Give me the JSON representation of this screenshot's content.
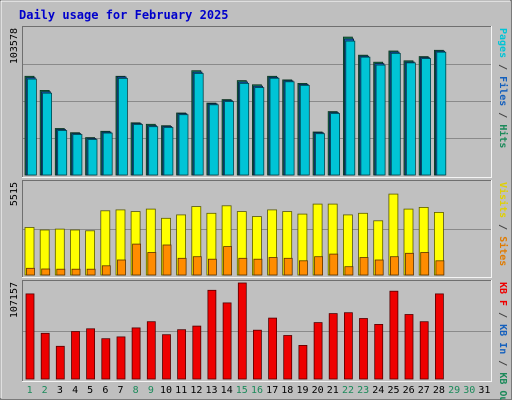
{
  "chart_data": {
    "type": "bar",
    "title": "Daily usage for February 2025",
    "categories": [
      "1",
      "2",
      "3",
      "4",
      "5",
      "6",
      "7",
      "8",
      "9",
      "10",
      "11",
      "12",
      "13",
      "14",
      "15",
      "16",
      "17",
      "18",
      "19",
      "20",
      "21",
      "22",
      "23",
      "24",
      "25",
      "26",
      "27",
      "28",
      "29",
      "30",
      "31"
    ],
    "weekend_days": [
      "1",
      "2",
      "8",
      "9",
      "15",
      "16",
      "22",
      "23",
      "29",
      "30"
    ],
    "panels": [
      {
        "id": "hits",
        "max_label": "103578",
        "ylim": [
          0,
          103578
        ],
        "side_labels": [
          {
            "text": "Pages",
            "color": "#00c4d6"
          },
          {
            "text": " / ",
            "color": "#444444"
          },
          {
            "text": "Files",
            "color": "#1560bd"
          },
          {
            "text": " / ",
            "color": "#444444"
          },
          {
            "text": "Hits",
            "color": "#1b8a5a"
          }
        ],
        "series": [
          {
            "name": "Hits",
            "color": "#1b8a5a",
            "values": [
              70000,
              60000,
              33000,
              30000,
              26500,
              31000,
              70000,
              37000,
              36000,
              35000,
              44000,
              74000,
              51000,
              53500,
              67000,
              64000,
              70000,
              67500,
              65000,
              30500,
              45000,
              97800,
              85000,
              80000,
              88000,
              81000,
              84000,
              88500,
              null,
              null,
              null
            ]
          },
          {
            "name": "Files",
            "color": "#1560bd",
            "values": [
              69000,
              59000,
              32300,
              29400,
              25900,
              30400,
              69500,
              36500,
              35000,
              34400,
              43500,
              73000,
              50500,
              52800,
              66000,
              63000,
              69300,
              66800,
              64300,
              30000,
              44300,
              96500,
              84300,
              79000,
              87200,
              80200,
              83300,
              87800,
              null,
              null,
              null
            ]
          },
          {
            "name": "Pages",
            "color": "#00c4d6",
            "values": [
              68000,
              58000,
              31600,
              28700,
              25200,
              29700,
              68500,
              35800,
              34300,
              33700,
              42800,
              72000,
              49800,
              52100,
              65000,
              62000,
              68600,
              66100,
              63600,
              29300,
              43600,
              95000,
              83600,
              78000,
              86300,
              79500,
              82600,
              87100,
              null,
              null,
              null
            ]
          }
        ]
      },
      {
        "id": "visits",
        "max_label": "5515",
        "ylim": [
          0,
          5515
        ],
        "side_labels": [
          {
            "text": "Visits",
            "color": "#e0d000"
          },
          {
            "text": " / ",
            "color": "#444444"
          },
          {
            "text": "Sites",
            "color": "#e07b00"
          }
        ],
        "series": [
          {
            "name": "Visits",
            "color": "#ffff00",
            "values": [
              2850,
              2700,
              2750,
              2700,
              2650,
              3850,
              3900,
              3800,
              3950,
              3400,
              3600,
              4100,
              3700,
              4150,
              3800,
              3500,
              3900,
              3800,
              3650,
              4250,
              4250,
              3600,
              3700,
              3250,
              4850,
              3950,
              4050,
              3750,
              null,
              null,
              null
            ]
          },
          {
            "name": "Sites",
            "color": "#ff8c00",
            "values": [
              400,
              360,
              350,
              350,
              350,
              550,
              900,
              1850,
              1350,
              1800,
              1000,
              1100,
              950,
              1700,
              1000,
              950,
              1050,
              1000,
              850,
              1100,
              1250,
              500,
              1050,
              900,
              1100,
              1300,
              1350,
              850,
              null,
              null,
              null
            ]
          }
        ]
      },
      {
        "id": "kbytes",
        "max_label": "107157",
        "ylim": [
          0,
          107157
        ],
        "side_labels": [
          {
            "text": "KB F",
            "color": "#ee0000"
          },
          {
            "text": " / ",
            "color": "#444444"
          },
          {
            "text": "KB In",
            "color": "#1560bd"
          },
          {
            "text": " / ",
            "color": "#444444"
          },
          {
            "text": "KB Out",
            "color": "#1b8a5a"
          }
        ],
        "series": [
          {
            "name": "KB F",
            "color": "#ee0000",
            "values": [
              95000,
              51000,
              36500,
              53000,
              56000,
              45000,
              47000,
              57000,
              64000,
              49500,
              55000,
              59000,
              99000,
              85000,
              107157,
              54500,
              68000,
              48500,
              37500,
              63000,
              73000,
              74000,
              67500,
              61000,
              98000,
              72000,
              64000,
              95000,
              null,
              null,
              null
            ]
          }
        ]
      }
    ]
  }
}
